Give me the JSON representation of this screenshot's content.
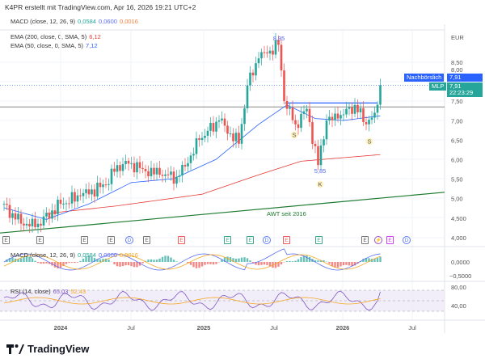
{
  "header": {
    "title": "K4PR erstellt mit TradingView.com, Apr 16, 2026 19:21 UTC+2"
  },
  "legend": {
    "macd_top": {
      "label": "MACD (close, 12, 26, 9)",
      "v1": "0,0584",
      "v2": "0,0600",
      "v3": "0,0016"
    },
    "ema200": {
      "label": "EMA (200, close, 0, SMA, 5)",
      "value": "6,12"
    },
    "ema50": {
      "label": "EMA (50, close, 0, SMA, 5)",
      "value": "7,12"
    },
    "macd_pane": {
      "label": "MACD (close, 12, 26, 9)",
      "v1": "0,0584",
      "v2": "0,0600",
      "v3": "0,0016"
    },
    "rsi_pane": {
      "label": "RSI (14, close)",
      "v1": "65,03",
      "v2": "52,43"
    }
  },
  "colors": {
    "up": "#26a69a",
    "down": "#ef5350",
    "ema50": "#2962ff",
    "ema200": "#e53935",
    "trend": "#1b7a2e",
    "macd": "#5b6cf0",
    "signal": "#f5a623"
  },
  "price_axis": {
    "currency": "EUR",
    "labels": [
      "8,50",
      "8,00",
      "7,50",
      "7,00",
      "6,50",
      "6,00",
      "5,50",
      "5,00",
      "4,500",
      "4,000"
    ]
  },
  "macd_axis": [
    "0,0000",
    "−0,5000"
  ],
  "rsi_axis": [
    "80,00",
    "40,00"
  ],
  "time_axis": [
    "2024",
    "Jul",
    "2025",
    "Jul",
    "2026",
    "Jul"
  ],
  "tags": {
    "after_hours_label": "Nachbörslich",
    "after_hours_price": "7,91",
    "mlp_label": "MLP",
    "mlp_price": "7,91",
    "countdown": "22:23:29"
  },
  "annotations": {
    "high": "8,95",
    "low": "5,85",
    "s1": "S",
    "s2": "S",
    "k": "K",
    "trendline": "AWT seit 2016"
  },
  "events": [
    "E",
    "E",
    "E",
    "E",
    "D",
    "E",
    "E",
    "E",
    "E",
    "D",
    "E",
    "E",
    "E",
    "⚡",
    "E",
    "D"
  ],
  "chart_data": {
    "type": "candlestick",
    "price_keypoints_week_close": [
      [
        0,
        4.85
      ],
      [
        4,
        4.45
      ],
      [
        11,
        4.25
      ],
      [
        20,
        4.85
      ],
      [
        27,
        5.05
      ],
      [
        36,
        5.35
      ],
      [
        40,
        5.85
      ],
      [
        45,
        5.9
      ],
      [
        49,
        5.75
      ],
      [
        55,
        5.6
      ],
      [
        61,
        5.55
      ],
      [
        65,
        5.9
      ],
      [
        69,
        6.5
      ],
      [
        76,
        7.0
      ],
      [
        83,
        6.4
      ],
      [
        86,
        7.9
      ],
      [
        90,
        8.6
      ],
      [
        97,
        8.95
      ],
      [
        99,
        7.5
      ],
      [
        103,
        6.9
      ],
      [
        107,
        7.3
      ],
      [
        111,
        5.85
      ],
      [
        114,
        7.0
      ],
      [
        118,
        7.05
      ],
      [
        124,
        7.4
      ],
      [
        128,
        6.9
      ],
      [
        131,
        7.2
      ],
      [
        133,
        7.91
      ]
    ],
    "ema50_keypoints": [
      [
        0,
        4.75
      ],
      [
        15,
        4.45
      ],
      [
        30,
        4.85
      ],
      [
        45,
        5.4
      ],
      [
        60,
        5.5
      ],
      [
        75,
        6.0
      ],
      [
        90,
        6.9
      ],
      [
        100,
        7.4
      ],
      [
        110,
        7.05
      ],
      [
        120,
        7.0
      ],
      [
        133,
        7.12
      ]
    ],
    "ema200_keypoints": [
      [
        15,
        4.6
      ],
      [
        40,
        4.8
      ],
      [
        70,
        5.1
      ],
      [
        90,
        5.6
      ],
      [
        105,
        5.95
      ],
      [
        133,
        6.12
      ]
    ],
    "horizontal_levels": [
      7.35,
      7.45,
      7.91
    ],
    "ylim": [
      3.9,
      9.3
    ]
  }
}
